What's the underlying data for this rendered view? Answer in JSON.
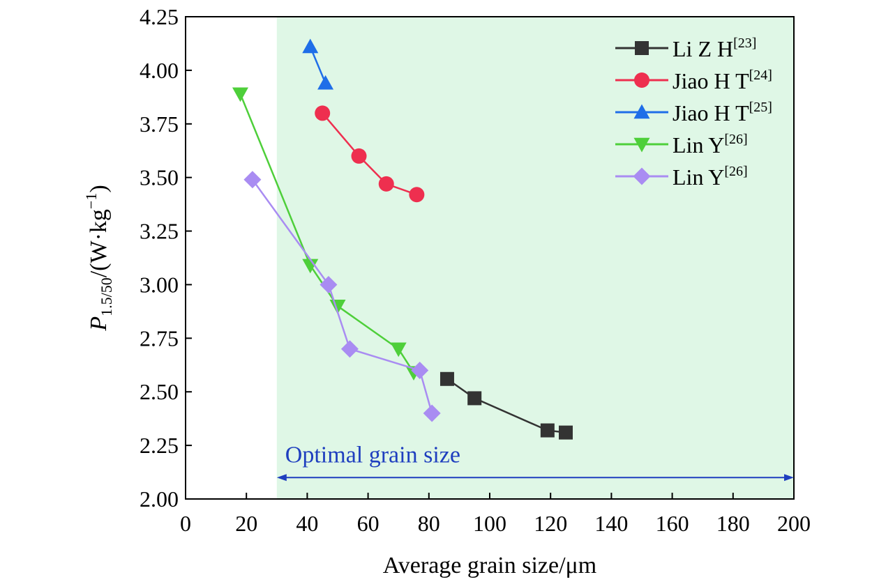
{
  "chart_data": {
    "type": "line",
    "xlabel": "Average grain size/μm",
    "ylabel": {
      "base": "P",
      "sub": "1.5/50",
      "text": "/(W·kg",
      "sup": "−1",
      "close": ")"
    },
    "xlim": [
      0,
      200
    ],
    "ylim": [
      2.0,
      4.25
    ],
    "xticks": [
      0,
      20,
      40,
      60,
      80,
      100,
      120,
      140,
      160,
      180,
      200
    ],
    "yticks": [
      "2.00",
      "2.25",
      "2.50",
      "2.75",
      "3.00",
      "3.25",
      "3.50",
      "3.75",
      "4.00",
      "4.25"
    ],
    "grid": false,
    "legend_position": "top-right",
    "shaded_region": {
      "x_start": 30,
      "x_end": 200,
      "color": "#dff7e6"
    },
    "annotation": {
      "text": "Optimal grain size",
      "color": "#1f3fbf",
      "arrow_from": 30,
      "arrow_to": 200,
      "arrow_y": 2.1,
      "text_y": 2.17
    },
    "series": [
      {
        "name": "Li Z H",
        "ref": "[23]",
        "color": "#333333",
        "marker": "square",
        "x": [
          86,
          95,
          119,
          125
        ],
        "y": [
          2.56,
          2.47,
          2.32,
          2.31
        ]
      },
      {
        "name": "Jiao H T",
        "ref": "[24]",
        "color": "#ee2f4f",
        "marker": "circle",
        "x": [
          45,
          57,
          66,
          76
        ],
        "y": [
          3.8,
          3.6,
          3.47,
          3.42
        ]
      },
      {
        "name": "Jiao H T",
        "ref": "[25]",
        "color": "#1f6ee8",
        "marker": "triangle-up",
        "x": [
          41,
          46
        ],
        "y": [
          4.11,
          3.94
        ]
      },
      {
        "name": "Lin Y",
        "ref": "[26]",
        "color": "#4ecf3a",
        "marker": "triangle-down",
        "x": [
          18,
          41,
          50,
          70,
          75
        ],
        "y": [
          3.89,
          3.09,
          2.9,
          2.7,
          2.59
        ]
      },
      {
        "name": "Lin Y",
        "ref": "[26]",
        "color": "#a98cf2",
        "marker": "diamond",
        "x": [
          22,
          47,
          54,
          77,
          81
        ],
        "y": [
          3.49,
          3.0,
          2.7,
          2.6,
          2.4
        ]
      }
    ]
  }
}
